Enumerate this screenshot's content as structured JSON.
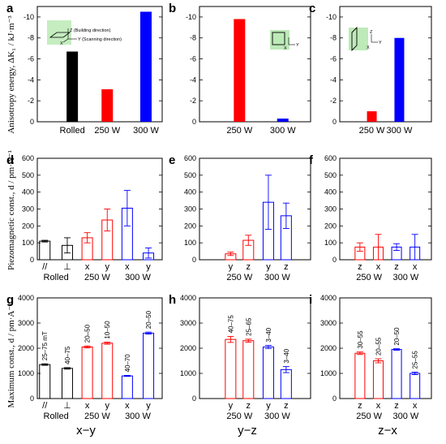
{
  "colors": {
    "rolled": "#000000",
    "w250": "#ff0000",
    "w300": "#0000ff"
  },
  "row_labels": {
    "a_y": "Anisotropy energy, ΔK₁ / kJ·m⁻³",
    "d_y": "Piezomagnetic const., d / pm·A⁻¹",
    "g_y": "Maximum const., d / pm·A⁻¹"
  },
  "bottom_labels": [
    "x−y",
    "y−z",
    "z−x"
  ],
  "inset_labels": {
    "z_build": "Z (Building direction)",
    "y_scan": "Y (Scanning direction)",
    "x": "X",
    "y": "Y",
    "z": "Z"
  },
  "chart_data": [
    {
      "id": "a",
      "type": "bar",
      "panel_label": "a",
      "ylim": [
        0,
        -11
      ],
      "yticks": [
        0,
        -2,
        -4,
        -6,
        -8,
        -10
      ],
      "categories": [
        "Rolled",
        "250 W",
        "300 W"
      ],
      "values": [
        -6.7,
        -3.1,
        -10.5
      ],
      "colors": [
        "rolled",
        "w250",
        "w300"
      ]
    },
    {
      "id": "b",
      "type": "bar",
      "panel_label": "b",
      "ylim": [
        0,
        -11
      ],
      "yticks": [
        0,
        -2,
        -4,
        -6,
        -8,
        -10
      ],
      "categories": [
        "250 W",
        "300 W"
      ],
      "values": [
        -9.8,
        -0.3
      ],
      "colors": [
        "w250",
        "w300"
      ]
    },
    {
      "id": "c",
      "type": "bar",
      "panel_label": "c",
      "ylim": [
        0,
        -11
      ],
      "yticks": [
        0,
        -2,
        -4,
        -6,
        -8,
        -10
      ],
      "categories": [
        "250 W",
        "300 W"
      ],
      "values": [
        -1.0,
        -8.0
      ],
      "colors": [
        "w250",
        "w300"
      ]
    },
    {
      "id": "d",
      "type": "bar",
      "panel_label": "d",
      "ylim": [
        0,
        600
      ],
      "yticks": [
        0,
        100,
        200,
        300,
        400,
        500,
        600
      ],
      "x_ticks": [
        "//",
        "⊥",
        "x",
        "y",
        "x",
        "y"
      ],
      "groups": [
        {
          "label": "Rolled",
          "span": [
            0,
            1
          ]
        },
        {
          "label": "250 W",
          "span": [
            2,
            3
          ]
        },
        {
          "label": "300 W",
          "span": [
            4,
            5
          ]
        }
      ],
      "values": [
        110,
        85,
        130,
        235,
        305,
        40
      ],
      "err": [
        5,
        45,
        30,
        65,
        105,
        30
      ],
      "colors": [
        "rolled",
        "rolled",
        "w250",
        "w250",
        "w300",
        "w300"
      ]
    },
    {
      "id": "e",
      "type": "bar",
      "panel_label": "e",
      "ylim": [
        0,
        600
      ],
      "yticks": [
        0,
        100,
        200,
        300,
        400,
        500,
        600
      ],
      "x_ticks": [
        "y",
        "z",
        "y",
        "z"
      ],
      "groups": [
        {
          "label": "250 W",
          "span": [
            0,
            1
          ]
        },
        {
          "label": "300 W",
          "span": [
            2,
            3
          ]
        }
      ],
      "values": [
        35,
        115,
        340,
        260
      ],
      "err": [
        10,
        30,
        160,
        75
      ],
      "colors": [
        "w250",
        "w250",
        "w300",
        "w300"
      ]
    },
    {
      "id": "f",
      "type": "bar",
      "panel_label": "f",
      "ylim": [
        0,
        600
      ],
      "yticks": [
        0,
        100,
        200,
        300,
        400,
        500,
        600
      ],
      "x_ticks": [
        "z",
        "x",
        "z",
        "x"
      ],
      "groups": [
        {
          "label": "250 W",
          "span": [
            0,
            1
          ]
        },
        {
          "label": "300 W",
          "span": [
            2,
            3
          ]
        }
      ],
      "values": [
        75,
        75,
        75,
        75
      ],
      "err": [
        25,
        75,
        20,
        75
      ],
      "colors": [
        "w250",
        "w250",
        "w300",
        "w300"
      ]
    },
    {
      "id": "g",
      "type": "bar",
      "panel_label": "g",
      "ylim": [
        0,
        4000
      ],
      "yticks": [
        0,
        1000,
        2000,
        3000,
        4000
      ],
      "x_ticks": [
        "//",
        "⊥",
        "x",
        "y",
        "x",
        "y"
      ],
      "groups": [
        {
          "label": "Rolled",
          "span": [
            0,
            1
          ]
        },
        {
          "label": "250 W",
          "span": [
            2,
            3
          ]
        },
        {
          "label": "300 W",
          "span": [
            4,
            5
          ]
        }
      ],
      "values": [
        1350,
        1200,
        2050,
        2200,
        900,
        2600
      ],
      "err": [
        30,
        30,
        40,
        40,
        20,
        40
      ],
      "annotations": [
        "25–75 mT",
        "40–75",
        "20–50",
        "10–50",
        "40–70",
        "20–50"
      ],
      "colors": [
        "rolled",
        "rolled",
        "w250",
        "w250",
        "w300",
        "w300"
      ]
    },
    {
      "id": "h",
      "type": "bar",
      "panel_label": "h",
      "ylim": [
        0,
        4000
      ],
      "yticks": [
        0,
        1000,
        2000,
        3000,
        4000
      ],
      "x_ticks": [
        "y",
        "z",
        "y",
        "z"
      ],
      "groups": [
        {
          "label": "250 W",
          "span": [
            0,
            1
          ]
        },
        {
          "label": "300 W",
          "span": [
            2,
            3
          ]
        }
      ],
      "values": [
        2350,
        2300,
        2050,
        1150
      ],
      "err": [
        120,
        60,
        60,
        120
      ],
      "annotations": [
        "40–75",
        "25–65",
        "3–40",
        "3–40"
      ],
      "colors": [
        "w250",
        "w250",
        "w300",
        "w300"
      ]
    },
    {
      "id": "i",
      "type": "bar",
      "panel_label": "i",
      "ylim": [
        0,
        4000
      ],
      "yticks": [
        0,
        1000,
        2000,
        3000,
        4000
      ],
      "x_ticks": [
        "z",
        "x",
        "z",
        "x"
      ],
      "groups": [
        {
          "label": "250 W",
          "span": [
            0,
            1
          ]
        },
        {
          "label": "300 W",
          "span": [
            2,
            3
          ]
        }
      ],
      "values": [
        1800,
        1500,
        1950,
        1000
      ],
      "err": [
        50,
        80,
        30,
        50
      ],
      "annotations": [
        "30–55",
        "20–55",
        "20–50",
        "25–55"
      ],
      "colors": [
        "w250",
        "w250",
        "w300",
        "w300"
      ]
    }
  ]
}
